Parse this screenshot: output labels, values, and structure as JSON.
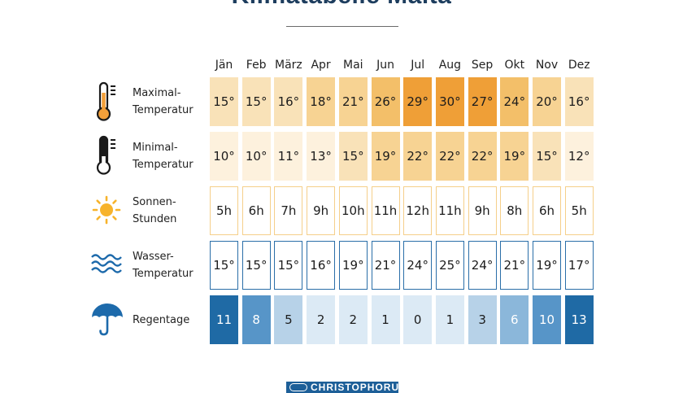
{
  "title": "Klimatabelle Malta",
  "logo": {
    "text": "CHRISTOPHORUS"
  },
  "colors": {
    "warm_scale": [
      "#fdf1dd",
      "#f9e2b8",
      "#f7d393",
      "#f3bf69",
      "#ef9f37"
    ],
    "blue_scale": [
      "#dceaf5",
      "#b7d2e8",
      "#8bb7da",
      "#5795c8",
      "#1f6aa5"
    ],
    "icon_blue": "#1d6aab",
    "sun": "#f7b32b",
    "thermo_warm": "#f3a03a"
  },
  "chart_data": {
    "type": "table",
    "title": "Klimatabelle Malta",
    "months": [
      "Jän",
      "Feb",
      "März",
      "Apr",
      "Mai",
      "Jun",
      "Jul",
      "Aug",
      "Sep",
      "Okt",
      "Nov",
      "Dez"
    ],
    "rows": [
      {
        "label": [
          "Maximal-",
          "Temperatur"
        ],
        "icon": "thermometer-high-icon",
        "style": "warm-filled",
        "unit": "°",
        "values": [
          15,
          15,
          16,
          18,
          21,
          26,
          29,
          30,
          27,
          24,
          20,
          16
        ]
      },
      {
        "label": [
          "Minimal-",
          "Temperatur"
        ],
        "icon": "thermometer-low-icon",
        "style": "warm-filled",
        "unit": "°",
        "values": [
          10,
          10,
          11,
          13,
          15,
          19,
          22,
          22,
          22,
          19,
          15,
          12
        ]
      },
      {
        "label": [
          "Sonnen-",
          "Stunden"
        ],
        "icon": "sun-icon",
        "style": "warm-outline",
        "unit": "h",
        "values": [
          5,
          6,
          7,
          9,
          10,
          11,
          12,
          11,
          9,
          8,
          6,
          5
        ]
      },
      {
        "label": [
          "Wasser-",
          "Temperatur"
        ],
        "icon": "waves-icon",
        "style": "blue-outline",
        "unit": "°",
        "values": [
          15,
          15,
          15,
          16,
          19,
          21,
          24,
          25,
          24,
          21,
          19,
          17
        ]
      },
      {
        "label": [
          "Regentage"
        ],
        "icon": "umbrella-icon",
        "style": "blue-filled",
        "unit": "",
        "values": [
          11,
          8,
          5,
          2,
          2,
          1,
          0,
          1,
          3,
          6,
          10,
          13
        ]
      }
    ]
  }
}
